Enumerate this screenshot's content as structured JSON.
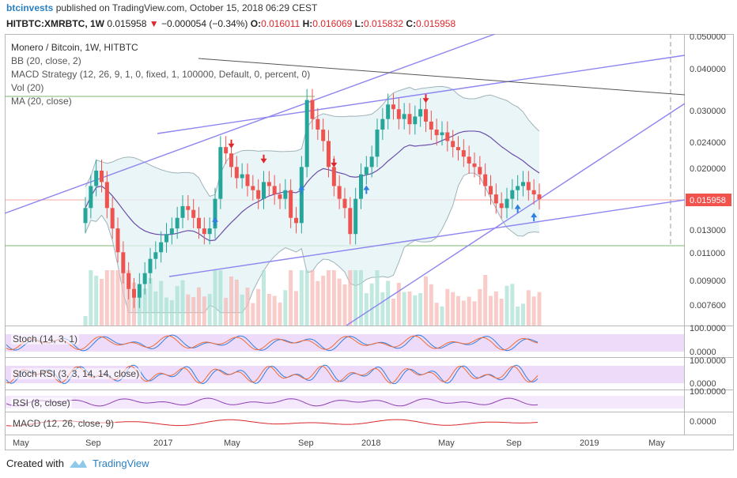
{
  "header": {
    "author": "btcinvests",
    "published_text": "published on TradingView.com, October 15, 2018 06:29 CEST"
  },
  "symbol_line": {
    "symbol": "HITBTC:XMRBTC, 1W",
    "last": "0.015958",
    "change": "−0.000054 (−0.34%)",
    "o_label": "O:",
    "o": "0.016011",
    "h_label": "H:",
    "h": "0.016069",
    "l_label": "L:",
    "l": "0.015832",
    "c_label": "C:",
    "c": "0.015958"
  },
  "legend": {
    "title": "Monero / Bitcoin, 1W, HITBTC",
    "bb": "BB (20, close, 2)",
    "macd_strategy": "MACD Strategy (12, 26, 9, 1, 0, fixed, 1, 100000, Default, 0, percent, 0)",
    "vol": "Vol (20)",
    "ma": "MA (20, close)"
  },
  "panes": {
    "stoch": "Stoch (14, 3, 1)",
    "stoch_rsi": "Stoch RSI (3, 3, 14, 14, close)",
    "rsi": "RSI (8, close)",
    "macd": "MACD (12, 26, close, 9)"
  },
  "price_axis": {
    "ticks": [
      "0.050000",
      "0.040000",
      "0.030000",
      "0.024000",
      "0.020000",
      "0.013000",
      "0.011000",
      "0.009000",
      "0.007600"
    ],
    "current_label": "0.015958",
    "stoch_tick_a": "100.0000",
    "stoch_tick_b": "0.0000",
    "stochrsi_tick_a": "100.0000",
    "stochrsi_tick_b": "0.0000",
    "rsi_tick": "100.0000",
    "macd_tick": "0.0000"
  },
  "time_axis": [
    "May",
    "Sep",
    "2017",
    "May",
    "Sep",
    "2018",
    "May",
    "Sep",
    "2019",
    "May"
  ],
  "footer": {
    "created_with": "Created with",
    "brand": "TradingView"
  },
  "colors": {
    "up": "#26a69a",
    "down": "#ef5350",
    "bb_fill": "#e3f1f6",
    "trendline": "#8d85f0",
    "current_price": "#f2524c",
    "osc_band": "#e4c7f5",
    "author": "#2a7fc1"
  },
  "chart_data": [
    {
      "type": "candlestick",
      "title": "Monero / Bitcoin, 1W, HITBTC",
      "yscale": "log",
      "ylim": [
        0.0068,
        0.052
      ],
      "x_range": [
        "2016-05",
        "2019-06"
      ],
      "current_price": 0.015958,
      "close_approx": [
        0.015,
        0.0175,
        0.0195,
        0.018,
        0.015,
        0.013,
        0.011,
        0.0095,
        0.0085,
        0.008,
        0.0088,
        0.0095,
        0.0105,
        0.011,
        0.0118,
        0.0125,
        0.013,
        0.014,
        0.0152,
        0.0148,
        0.014,
        0.013,
        0.0125,
        0.013,
        0.016,
        0.023,
        0.022,
        0.02,
        0.0185,
        0.019,
        0.0175,
        0.017,
        0.016,
        0.018,
        0.0175,
        0.0165,
        0.016,
        0.017,
        0.014,
        0.0135,
        0.02,
        0.032,
        0.028,
        0.026,
        0.024,
        0.02,
        0.0175,
        0.016,
        0.015,
        0.0125,
        0.016,
        0.019,
        0.02,
        0.0215,
        0.026,
        0.028,
        0.031,
        0.03,
        0.028,
        0.029,
        0.027,
        0.0285,
        0.03,
        0.0275,
        0.026,
        0.025,
        0.0255,
        0.024,
        0.023,
        0.0225,
        0.0215,
        0.0205,
        0.02,
        0.019,
        0.0175,
        0.0165,
        0.0155,
        0.015,
        0.016,
        0.017,
        0.0175,
        0.018,
        0.017,
        0.0165,
        0.015958
      ]
    },
    {
      "type": "bar",
      "title": "Vol (20)"
    },
    {
      "type": "line",
      "title": "Stoch (14, 3, 1)",
      "ylim": [
        0,
        100
      ]
    },
    {
      "type": "line",
      "title": "Stoch RSI (3, 3, 14, 14, close)",
      "ylim": [
        0,
        100
      ]
    },
    {
      "type": "line",
      "title": "RSI (8, close)"
    },
    {
      "type": "line",
      "title": "MACD (12, 26, close, 9)"
    }
  ]
}
